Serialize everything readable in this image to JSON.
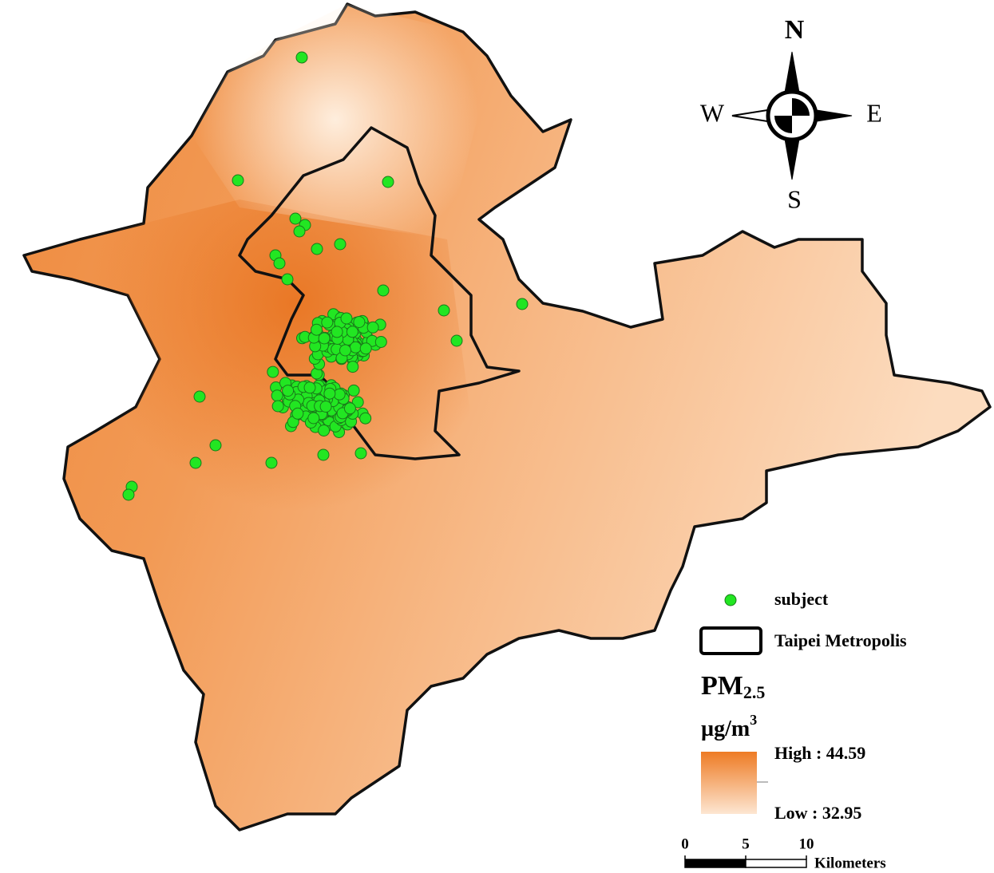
{
  "map": {
    "compass": {
      "north": "N",
      "west": "W",
      "east": "E",
      "south": "S"
    },
    "legend": {
      "subject": "subject",
      "boundary": "Taipei Metropolis",
      "pollutant": {
        "base": "PM",
        "subscript": "2.5"
      },
      "unit": {
        "base": "µg/m",
        "superscript": "3"
      },
      "high": "High : 44.59",
      "low": "Low : 32.95"
    },
    "scale_bar": {
      "ticks": [
        0,
        5,
        10
      ],
      "unit": "Kilometers"
    }
  }
}
